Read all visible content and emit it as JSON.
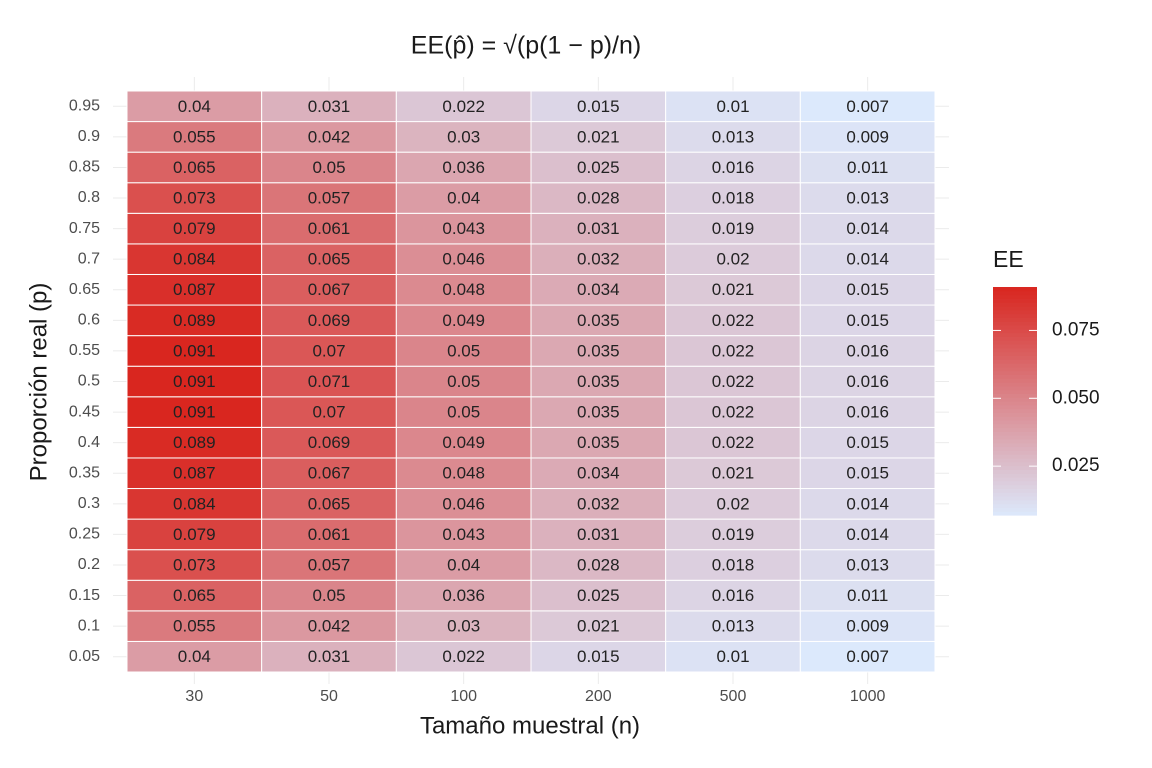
{
  "chart_data": {
    "type": "heatmap",
    "title": "EE(p̂) = √(p(1 − p)/n)",
    "x_label": "Tamaño muestral (n)",
    "y_label": "Proporción real (p)",
    "categories": [
      "30",
      "50",
      "100",
      "200",
      "500",
      "1000"
    ],
    "y_categories": [
      "0.05",
      "0.1",
      "0.15",
      "0.2",
      "0.25",
      "0.3",
      "0.35",
      "0.4",
      "0.45",
      "0.5",
      "0.55",
      "0.6",
      "0.65",
      "0.7",
      "0.75",
      "0.8",
      "0.85",
      "0.9",
      "0.95"
    ],
    "z": [
      [
        0.04,
        0.031,
        0.022,
        0.015,
        0.01,
        0.007
      ],
      [
        0.055,
        0.042,
        0.03,
        0.021,
        0.013,
        0.009
      ],
      [
        0.065,
        0.05,
        0.036,
        0.025,
        0.016,
        0.011
      ],
      [
        0.073,
        0.057,
        0.04,
        0.028,
        0.018,
        0.013
      ],
      [
        0.079,
        0.061,
        0.043,
        0.031,
        0.019,
        0.014
      ],
      [
        0.084,
        0.065,
        0.046,
        0.032,
        0.02,
        0.014
      ],
      [
        0.087,
        0.067,
        0.048,
        0.034,
        0.021,
        0.015
      ],
      [
        0.089,
        0.069,
        0.049,
        0.035,
        0.022,
        0.015
      ],
      [
        0.091,
        0.07,
        0.05,
        0.035,
        0.022,
        0.016
      ],
      [
        0.091,
        0.071,
        0.05,
        0.035,
        0.022,
        0.016
      ],
      [
        0.091,
        0.07,
        0.05,
        0.035,
        0.022,
        0.016
      ],
      [
        0.089,
        0.069,
        0.049,
        0.035,
        0.022,
        0.015
      ],
      [
        0.087,
        0.067,
        0.048,
        0.034,
        0.021,
        0.015
      ],
      [
        0.084,
        0.065,
        0.046,
        0.032,
        0.02,
        0.014
      ],
      [
        0.079,
        0.061,
        0.043,
        0.031,
        0.019,
        0.014
      ],
      [
        0.073,
        0.057,
        0.04,
        0.028,
        0.018,
        0.013
      ],
      [
        0.065,
        0.05,
        0.036,
        0.025,
        0.016,
        0.011
      ],
      [
        0.055,
        0.042,
        0.03,
        0.021,
        0.013,
        0.009
      ],
      [
        0.04,
        0.031,
        0.022,
        0.015,
        0.01,
        0.007
      ]
    ],
    "legend_title": "EE",
    "clim": [
      0.007,
      0.091
    ],
    "cticks": [
      {
        "value": 0.025,
        "label": "0.025"
      },
      {
        "value": 0.05,
        "label": "0.050"
      },
      {
        "value": 0.075,
        "label": "0.075"
      }
    ],
    "colors": [
      "#dce9fc",
      "#d9261f"
    ],
    "grid": true
  }
}
